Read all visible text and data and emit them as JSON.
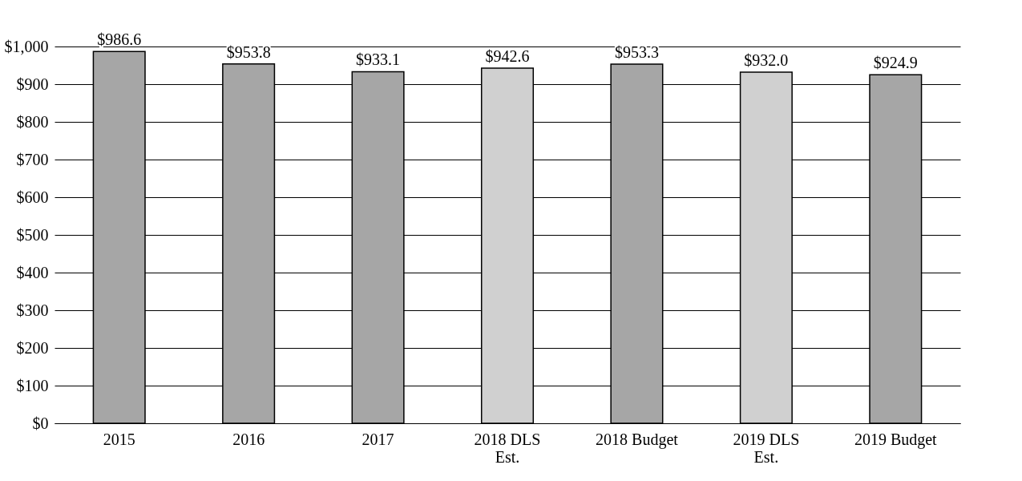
{
  "chart_data": {
    "type": "bar",
    "categories": [
      "2015",
      "2016",
      "2017",
      "2018 DLS Est.",
      "2018 Budget",
      "2019 DLS Est.",
      "2019 Budget"
    ],
    "values": [
      986.6,
      953.8,
      933.1,
      942.6,
      953.3,
      932.0,
      924.9
    ],
    "colors": [
      "#a6a6a6",
      "#a6a6a6",
      "#a6a6a6",
      "#d0d0d0",
      "#a6a6a6",
      "#d0d0d0",
      "#a6a6a6"
    ],
    "value_labels": [
      "$986.6",
      "$953.8",
      "$933.1",
      "$942.6",
      "$953.3",
      "$932.0",
      "$924.9"
    ],
    "ylim": [
      0,
      1000
    ],
    "yticks": [
      {
        "value": 0,
        "label": "$0"
      },
      {
        "value": 100,
        "label": "$100"
      },
      {
        "value": 200,
        "label": "$200"
      },
      {
        "value": 300,
        "label": "$300"
      },
      {
        "value": 400,
        "label": "$400"
      },
      {
        "value": 500,
        "label": "$500"
      },
      {
        "value": 600,
        "label": "$600"
      },
      {
        "value": 700,
        "label": "$700"
      },
      {
        "value": 800,
        "label": "$800"
      },
      {
        "value": 900,
        "label": "$900"
      },
      {
        "value": 1000,
        "label": "$1,000"
      }
    ],
    "grid": "y"
  }
}
